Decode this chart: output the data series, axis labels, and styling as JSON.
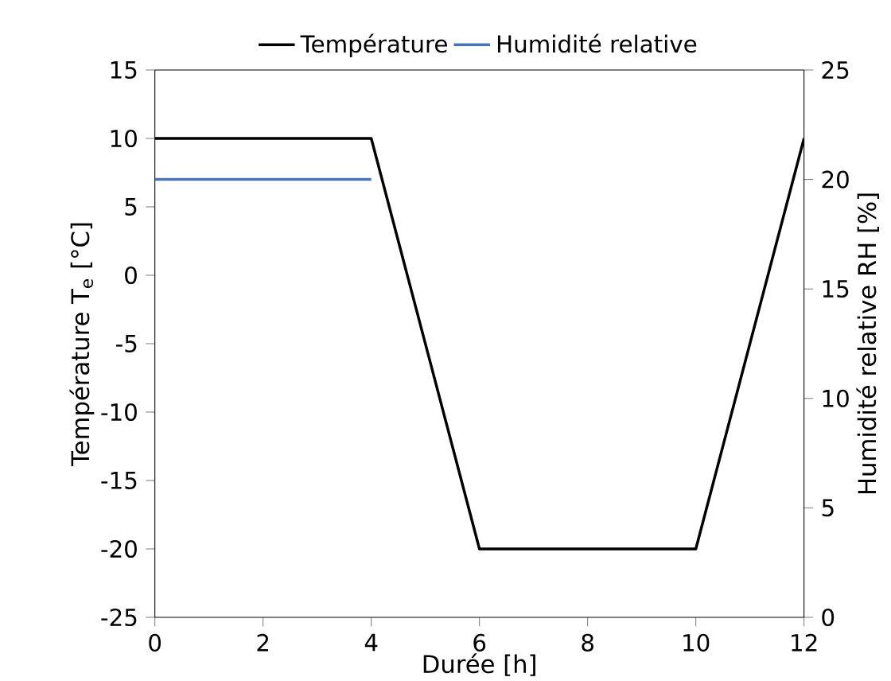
{
  "chart_data": {
    "type": "line",
    "xlabel": "Durée [h]",
    "ylabel": "Température T$_{e}$ [°C]",
    "y2label": "Humidité relative RH [%]",
    "xlim": [
      0,
      12
    ],
    "xticks": [
      0,
      2,
      4,
      6,
      8,
      10,
      12
    ],
    "ylim": [
      -25,
      15
    ],
    "yticks": [
      -25,
      -20,
      -15,
      -10,
      -5,
      0,
      5,
      10,
      15
    ],
    "y2lim": [
      0,
      25
    ],
    "y2ticks": [
      0,
      5,
      10,
      15,
      20,
      25
    ],
    "legend": "top",
    "marker": "none",
    "line_style": "solid",
    "series": [
      {
        "name": "Température",
        "color": "#000000",
        "axis": "y",
        "x": [
          0,
          4,
          6,
          10,
          12
        ],
        "values": [
          10,
          10,
          -20,
          -20,
          10
        ]
      },
      {
        "name": "Humidité relative",
        "color": "#4472c4",
        "axis": "y2",
        "x": [
          0,
          4
        ],
        "values": [
          20,
          20
        ]
      }
    ]
  }
}
